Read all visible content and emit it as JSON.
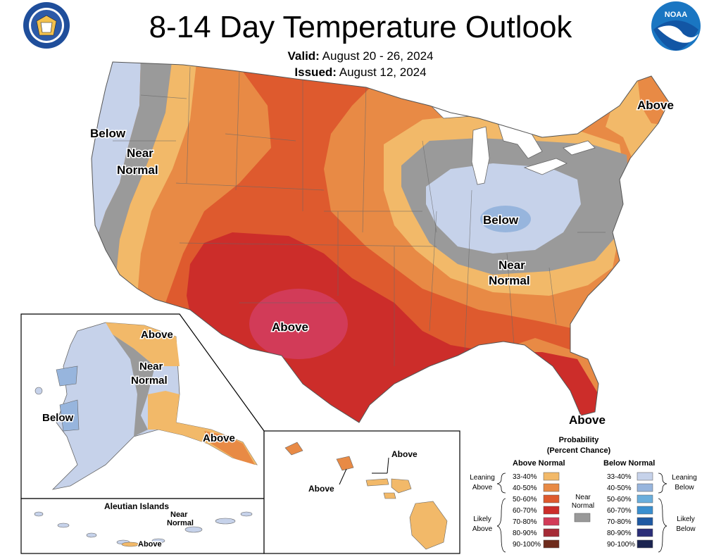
{
  "title": "8-14 Day Temperature Outlook",
  "valid_label": "Valid:",
  "valid_value": "August 20 - 26, 2024",
  "issued_label": "Issued:",
  "issued_value": "August 12, 2024",
  "logos": {
    "left": "department-of-commerce-seal",
    "right": "noaa-logo"
  },
  "map_labels": {
    "contiguous_west_below": "Below",
    "contiguous_west_near_1": "Near",
    "contiguous_west_near_2": "Normal",
    "contiguous_northeast_above": "Above",
    "contiguous_ohio_below": "Below",
    "contiguous_east_near_1": "Near",
    "contiguous_east_near_2": "Normal",
    "contiguous_southwest_above": "Above",
    "contiguous_florida_above": "Above",
    "alaska_north_above": "Above",
    "alaska_near_1": "Near",
    "alaska_near_2": "Normal",
    "alaska_west_below": "Below",
    "alaska_southeast_above": "Above",
    "aleutian_title": "Aleutian Islands",
    "aleutian_near_1": "Near",
    "aleutian_near_2": "Normal",
    "aleutian_above": "Above",
    "hawaii_above_right": "Above",
    "hawaii_above_left": "Above"
  },
  "legend": {
    "title_1": "Probability",
    "title_2": "(Percent Chance)",
    "above_header": "Above Normal",
    "below_header": "Below Normal",
    "leaning_above_1": "Leaning",
    "leaning_above_2": "Above",
    "likely_above_1": "Likely",
    "likely_above_2": "Above",
    "near_normal_1": "Near",
    "near_normal_2": "Normal",
    "leaning_below_1": "Leaning",
    "leaning_below_2": "Below",
    "likely_below_1": "Likely",
    "likely_below_2": "Below",
    "above_items": [
      {
        "label": "33-40%",
        "color": "#f2b969"
      },
      {
        "label": "40-50%",
        "color": "#e88a45"
      },
      {
        "label": "50-60%",
        "color": "#de5a2e"
      },
      {
        "label": "60-70%",
        "color": "#cc2d2a"
      },
      {
        "label": "70-80%",
        "color": "#d23b58"
      },
      {
        "label": "80-90%",
        "color": "#a52b36"
      },
      {
        "label": "90-100%",
        "color": "#6e2b1c"
      }
    ],
    "below_items": [
      {
        "label": "33-40%",
        "color": "#c6d2ea"
      },
      {
        "label": "40-50%",
        "color": "#97b5dd"
      },
      {
        "label": "50-60%",
        "color": "#6aaedc"
      },
      {
        "label": "60-70%",
        "color": "#3a8fcf"
      },
      {
        "label": "70-80%",
        "color": "#1f5aa3"
      },
      {
        "label": "80-90%",
        "color": "#2b2e78"
      },
      {
        "label": "90-100%",
        "color": "#1b2450"
      }
    ],
    "near_color": "#999999"
  }
}
